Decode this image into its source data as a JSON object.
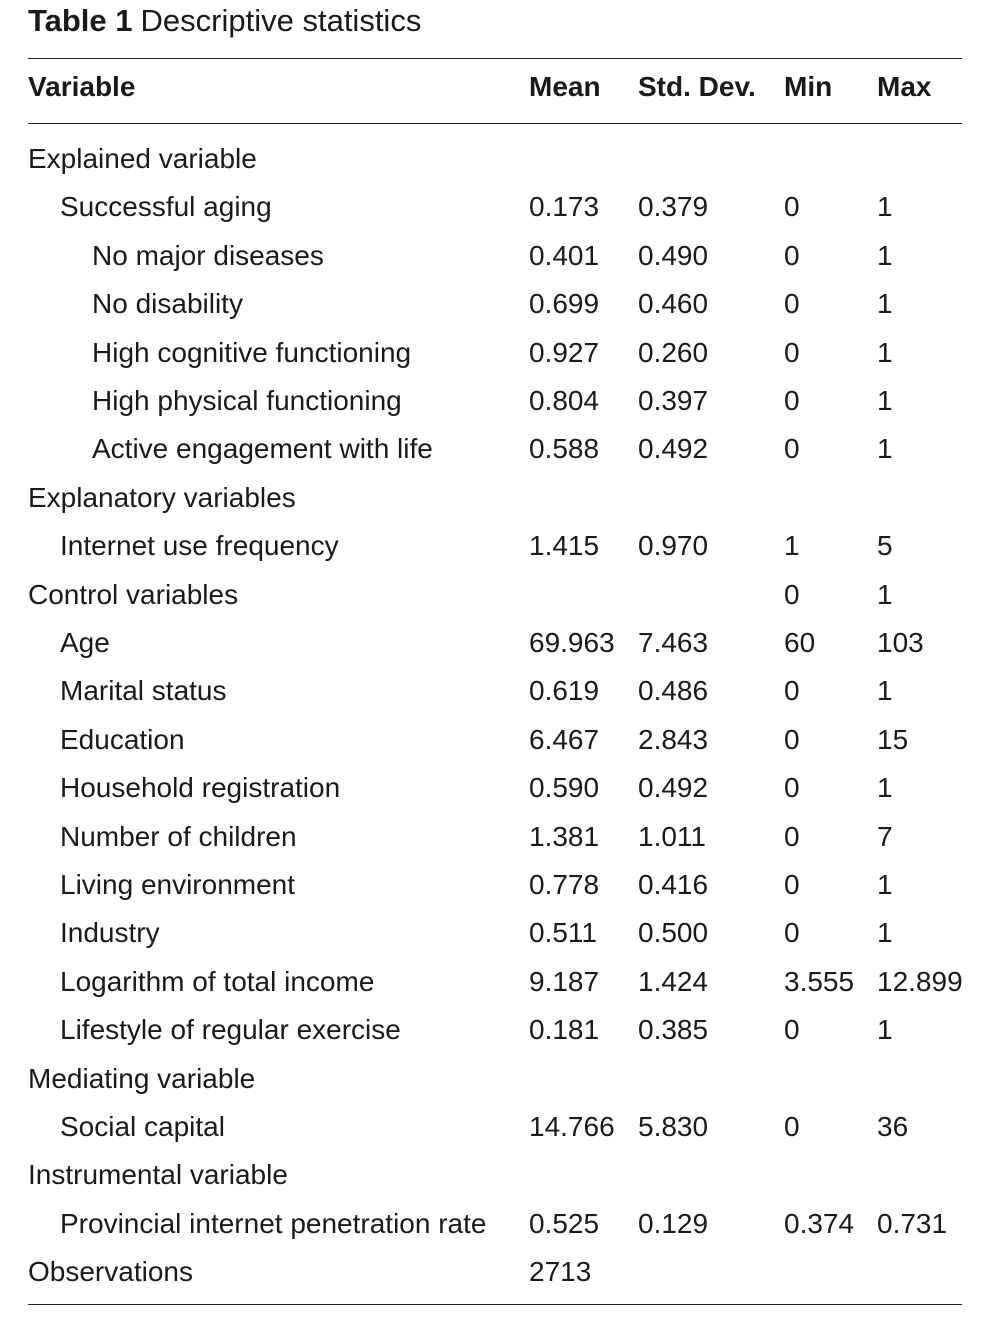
{
  "caption": {
    "label": "Table 1",
    "title": "Descriptive statistics"
  },
  "columns": [
    "Variable",
    "Mean",
    "Std. Dev.",
    "Min",
    "Max"
  ],
  "rows": [
    {
      "level": 0,
      "variable": "Explained variable",
      "mean": "",
      "sd": "",
      "min": "",
      "max": ""
    },
    {
      "level": 1,
      "variable": "Successful aging",
      "mean": "0.173",
      "sd": "0.379",
      "min": "0",
      "max": "1"
    },
    {
      "level": 2,
      "variable": "No major diseases",
      "mean": "0.401",
      "sd": "0.490",
      "min": "0",
      "max": "1"
    },
    {
      "level": 2,
      "variable": "No disability",
      "mean": "0.699",
      "sd": "0.460",
      "min": "0",
      "max": "1"
    },
    {
      "level": 2,
      "variable": "High cognitive functioning",
      "mean": "0.927",
      "sd": "0.260",
      "min": "0",
      "max": "1"
    },
    {
      "level": 2,
      "variable": "High physical functioning",
      "mean": "0.804",
      "sd": "0.397",
      "min": "0",
      "max": "1"
    },
    {
      "level": 2,
      "variable": "Active engagement with life",
      "mean": "0.588",
      "sd": "0.492",
      "min": "0",
      "max": "1"
    },
    {
      "level": 0,
      "variable": "Explanatory variables",
      "mean": "",
      "sd": "",
      "min": "",
      "max": ""
    },
    {
      "level": 1,
      "variable": "Internet use frequency",
      "mean": "1.415",
      "sd": "0.970",
      "min": "1",
      "max": "5"
    },
    {
      "level": 0,
      "variable": "Control variables",
      "mean": "",
      "sd": "",
      "min": "0",
      "max": "1"
    },
    {
      "level": 1,
      "variable": "Age",
      "mean": "69.963",
      "sd": "7.463",
      "min": "60",
      "max": "103"
    },
    {
      "level": 1,
      "variable": "Marital status",
      "mean": "0.619",
      "sd": "0.486",
      "min": "0",
      "max": "1"
    },
    {
      "level": 1,
      "variable": "Education",
      "mean": "6.467",
      "sd": "2.843",
      "min": "0",
      "max": "15"
    },
    {
      "level": 1,
      "variable": "Household registration",
      "mean": "0.590",
      "sd": "0.492",
      "min": "0",
      "max": "1"
    },
    {
      "level": 1,
      "variable": "Number of children",
      "mean": "1.381",
      "sd": "1.011",
      "min": "0",
      "max": "7"
    },
    {
      "level": 1,
      "variable": "Living environment",
      "mean": "0.778",
      "sd": "0.416",
      "min": "0",
      "max": "1"
    },
    {
      "level": 1,
      "variable": "Industry",
      "mean": "0.511",
      "sd": "0.500",
      "min": "0",
      "max": "1"
    },
    {
      "level": 1,
      "variable": "Logarithm of total income",
      "mean": "9.187",
      "sd": "1.424",
      "min": "3.555",
      "max": "12.899"
    },
    {
      "level": 1,
      "variable": "Lifestyle of regular exercise",
      "mean": "0.181",
      "sd": "0.385",
      "min": "0",
      "max": "1"
    },
    {
      "level": 0,
      "variable": "Mediating variable",
      "mean": "",
      "sd": "",
      "min": "",
      "max": ""
    },
    {
      "level": 1,
      "variable": "Social capital",
      "mean": "14.766",
      "sd": "5.830",
      "min": "0",
      "max": "36"
    },
    {
      "level": 0,
      "variable": "Instrumental variable",
      "mean": "",
      "sd": "",
      "min": "",
      "max": ""
    },
    {
      "level": 1,
      "variable": "Provincial internet penetration rate",
      "mean": "0.525",
      "sd": "0.129",
      "min": "0.374",
      "max": "0.731"
    },
    {
      "level": 0,
      "variable": "Observations",
      "mean": "2713",
      "sd": "",
      "min": "",
      "max": ""
    }
  ]
}
